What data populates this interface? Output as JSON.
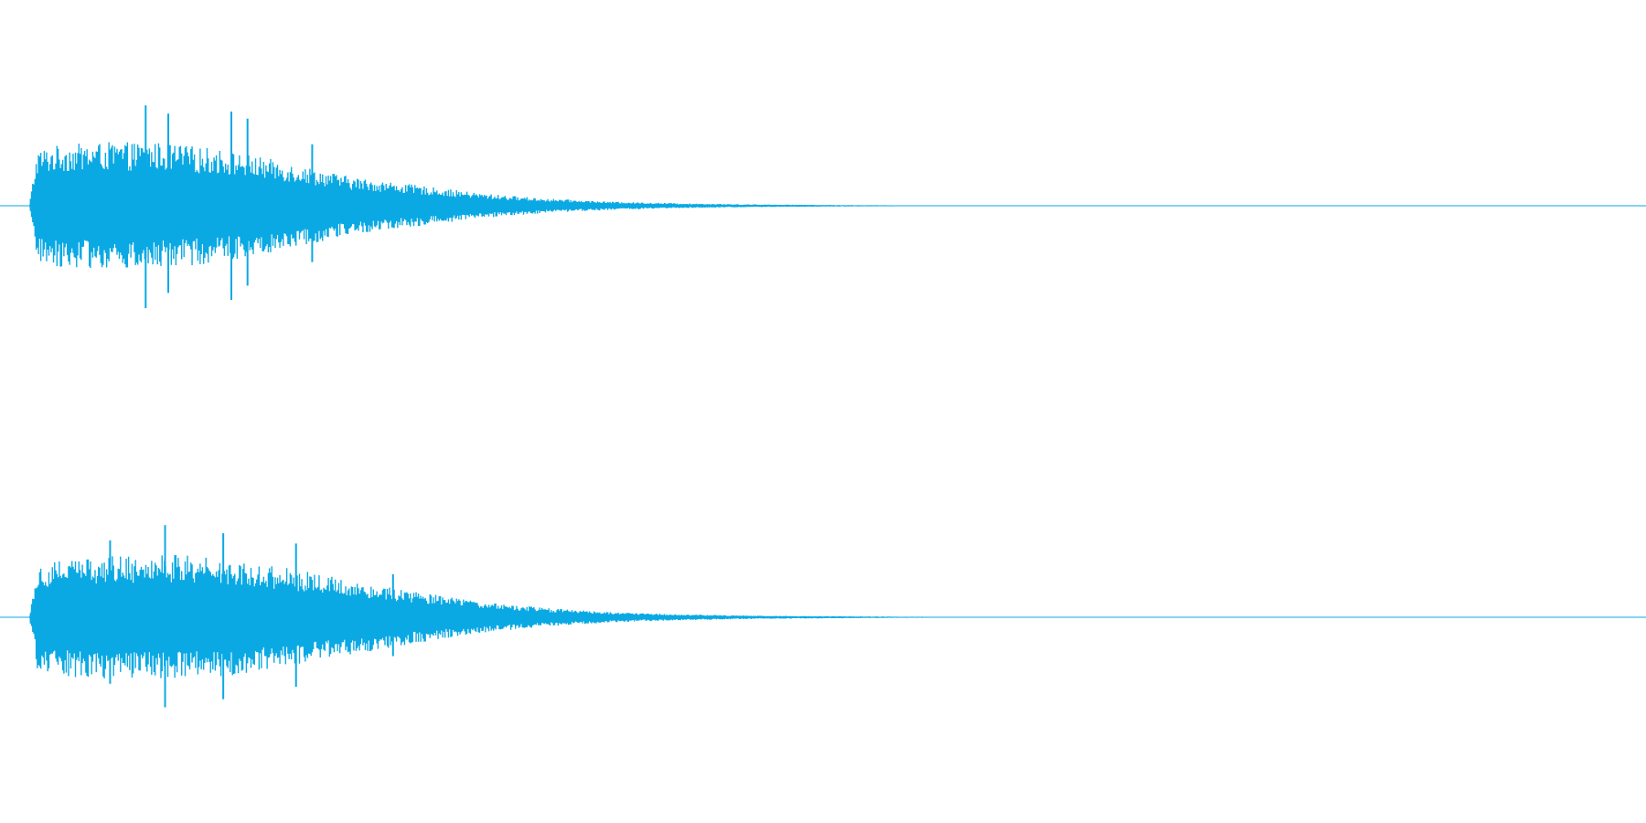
{
  "chart_data": {
    "type": "area",
    "title": "",
    "xlabel": "",
    "ylabel": "",
    "grid": false,
    "legend": "none",
    "colors": {
      "waveform": "#0aa9e4",
      "baseline": "#0aa9e4",
      "background": "#ffffff"
    },
    "xlim": [
      0,
      1
    ],
    "ylim": [
      -1,
      1
    ],
    "channels": [
      {
        "envelope": {
          "x": [
            0.0,
            0.005,
            0.02,
            0.05,
            0.08,
            0.12,
            0.16,
            0.2,
            0.24,
            0.28,
            0.32,
            0.36,
            0.4,
            0.44,
            0.48,
            0.52,
            0.56,
            0.6,
            0.64,
            0.68,
            0.72,
            1.0
          ],
          "upper": [
            0.0,
            0.55,
            0.6,
            0.62,
            0.62,
            0.55,
            0.42,
            0.28,
            0.2,
            0.12,
            0.07,
            0.04,
            0.025,
            0.015,
            0.01,
            0.006,
            0.004,
            0.003,
            0.002,
            0.001,
            0.0,
            0.0
          ],
          "lower": [
            0.0,
            -0.55,
            -0.6,
            -0.62,
            -0.62,
            -0.55,
            -0.42,
            -0.28,
            -0.2,
            -0.12,
            -0.07,
            -0.04,
            -0.025,
            -0.015,
            -0.01,
            -0.006,
            -0.004,
            -0.003,
            -0.002,
            -0.001,
            0.0,
            0.0
          ]
        },
        "peaks": [
          {
            "x": 0.072,
            "upper": 0.98,
            "lower": -1.0
          },
          {
            "x": 0.086,
            "upper": 0.9,
            "lower": -0.85
          },
          {
            "x": 0.125,
            "upper": 0.92,
            "lower": -0.92
          },
          {
            "x": 0.135,
            "upper": 0.85,
            "lower": -0.78
          },
          {
            "x": 0.175,
            "upper": 0.6,
            "lower": -0.55
          }
        ]
      },
      {
        "envelope": {
          "x": [
            0.0,
            0.005,
            0.02,
            0.05,
            0.08,
            0.12,
            0.16,
            0.2,
            0.24,
            0.28,
            0.32,
            0.36,
            0.4,
            0.44,
            0.48,
            0.52,
            0.56,
            0.6,
            0.64,
            0.68,
            0.72,
            1.0
          ],
          "upper": [
            0.0,
            0.5,
            0.58,
            0.6,
            0.62,
            0.58,
            0.48,
            0.36,
            0.25,
            0.15,
            0.09,
            0.05,
            0.03,
            0.018,
            0.012,
            0.008,
            0.005,
            0.004,
            0.003,
            0.002,
            0.0,
            0.0
          ],
          "lower": [
            0.0,
            -0.5,
            -0.58,
            -0.6,
            -0.62,
            -0.58,
            -0.48,
            -0.36,
            -0.25,
            -0.15,
            -0.09,
            -0.05,
            -0.03,
            -0.018,
            -0.012,
            -0.008,
            -0.005,
            -0.004,
            -0.003,
            -0.002,
            0.0,
            0.0
          ]
        },
        "peaks": [
          {
            "x": 0.05,
            "upper": 0.75,
            "lower": -0.65
          },
          {
            "x": 0.084,
            "upper": 0.9,
            "lower": -0.88
          },
          {
            "x": 0.12,
            "upper": 0.82,
            "lower": -0.8
          },
          {
            "x": 0.165,
            "upper": 0.72,
            "lower": -0.68
          },
          {
            "x": 0.225,
            "upper": 0.42,
            "lower": -0.38
          }
        ]
      }
    ]
  }
}
